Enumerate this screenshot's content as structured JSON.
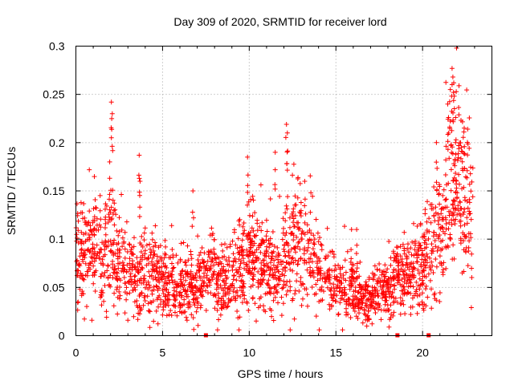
{
  "chart_data": {
    "type": "scatter",
    "title": "Day 309 of 2020, SRMTID for receiver lord",
    "xlabel": "GPS time / hours",
    "ylabel": "SRMTID / TECUs",
    "xlim": [
      0,
      24
    ],
    "ylim": [
      0,
      0.3
    ],
    "grid": true,
    "marker": "+",
    "color": "#ff0000",
    "x_ticks": [
      0,
      5,
      10,
      15,
      20
    ],
    "x_tick_labels": [
      "0",
      "5",
      "10",
      "15",
      "20"
    ],
    "y_ticks": [
      0,
      0.05,
      0.1,
      0.15,
      0.2,
      0.25,
      0.3
    ],
    "y_tick_labels": [
      "0",
      "0.05",
      "0.1",
      "0.15",
      "0.2",
      "0.25",
      "0.3"
    ],
    "data_gaps_at_zero_hours": [
      7.5,
      18.55,
      20.35
    ],
    "trend_profile": {
      "x": [
        0,
        0.5,
        1.0,
        1.5,
        2.0,
        2.5,
        3.0,
        3.5,
        4.0,
        5.0,
        6.0,
        7.0,
        7.6,
        8.0,
        9.0,
        9.5,
        10.0,
        10.5,
        11.0,
        11.5,
        12.0,
        12.5,
        13.0,
        13.5,
        14.0,
        15.0,
        16.0,
        16.5,
        17.0,
        17.5,
        18.0,
        18.5,
        19.0,
        19.5,
        20.0,
        20.5,
        21.0,
        21.5,
        21.8,
        22.0,
        22.5,
        22.9
      ],
      "y": [
        0.085,
        0.08,
        0.09,
        0.085,
        0.1,
        0.07,
        0.07,
        0.06,
        0.065,
        0.055,
        0.05,
        0.05,
        0.065,
        0.06,
        0.055,
        0.07,
        0.08,
        0.08,
        0.07,
        0.06,
        0.08,
        0.09,
        0.09,
        0.08,
        0.07,
        0.055,
        0.045,
        0.04,
        0.04,
        0.045,
        0.05,
        0.06,
        0.06,
        0.065,
        0.07,
        0.08,
        0.1,
        0.12,
        0.15,
        0.16,
        0.14,
        0.12
      ]
    },
    "peaks": [
      {
        "x": 2.05,
        "y": 0.242
      },
      {
        "x": 2.1,
        "y": 0.23
      },
      {
        "x": 1.95,
        "y": 0.18
      },
      {
        "x": 3.65,
        "y": 0.187
      },
      {
        "x": 3.7,
        "y": 0.16
      },
      {
        "x": 6.75,
        "y": 0.15
      },
      {
        "x": 9.9,
        "y": 0.185
      },
      {
        "x": 11.5,
        "y": 0.19
      },
      {
        "x": 12.15,
        "y": 0.219
      },
      {
        "x": 12.2,
        "y": 0.21
      },
      {
        "x": 13.2,
        "y": 0.16
      },
      {
        "x": 15.9,
        "y": 0.11
      },
      {
        "x": 16.2,
        "y": 0.11
      },
      {
        "x": 21.45,
        "y": 0.24
      },
      {
        "x": 21.6,
        "y": 0.255
      },
      {
        "x": 21.7,
        "y": 0.277
      },
      {
        "x": 21.75,
        "y": 0.268
      },
      {
        "x": 21.8,
        "y": 0.262
      },
      {
        "x": 21.5,
        "y": 0.226
      },
      {
        "x": 22.4,
        "y": 0.215
      },
      {
        "x": 22.6,
        "y": 0.214
      },
      {
        "x": 20.8,
        "y": 0.2
      },
      {
        "x": 21.9,
        "y": 0.2
      }
    ]
  }
}
